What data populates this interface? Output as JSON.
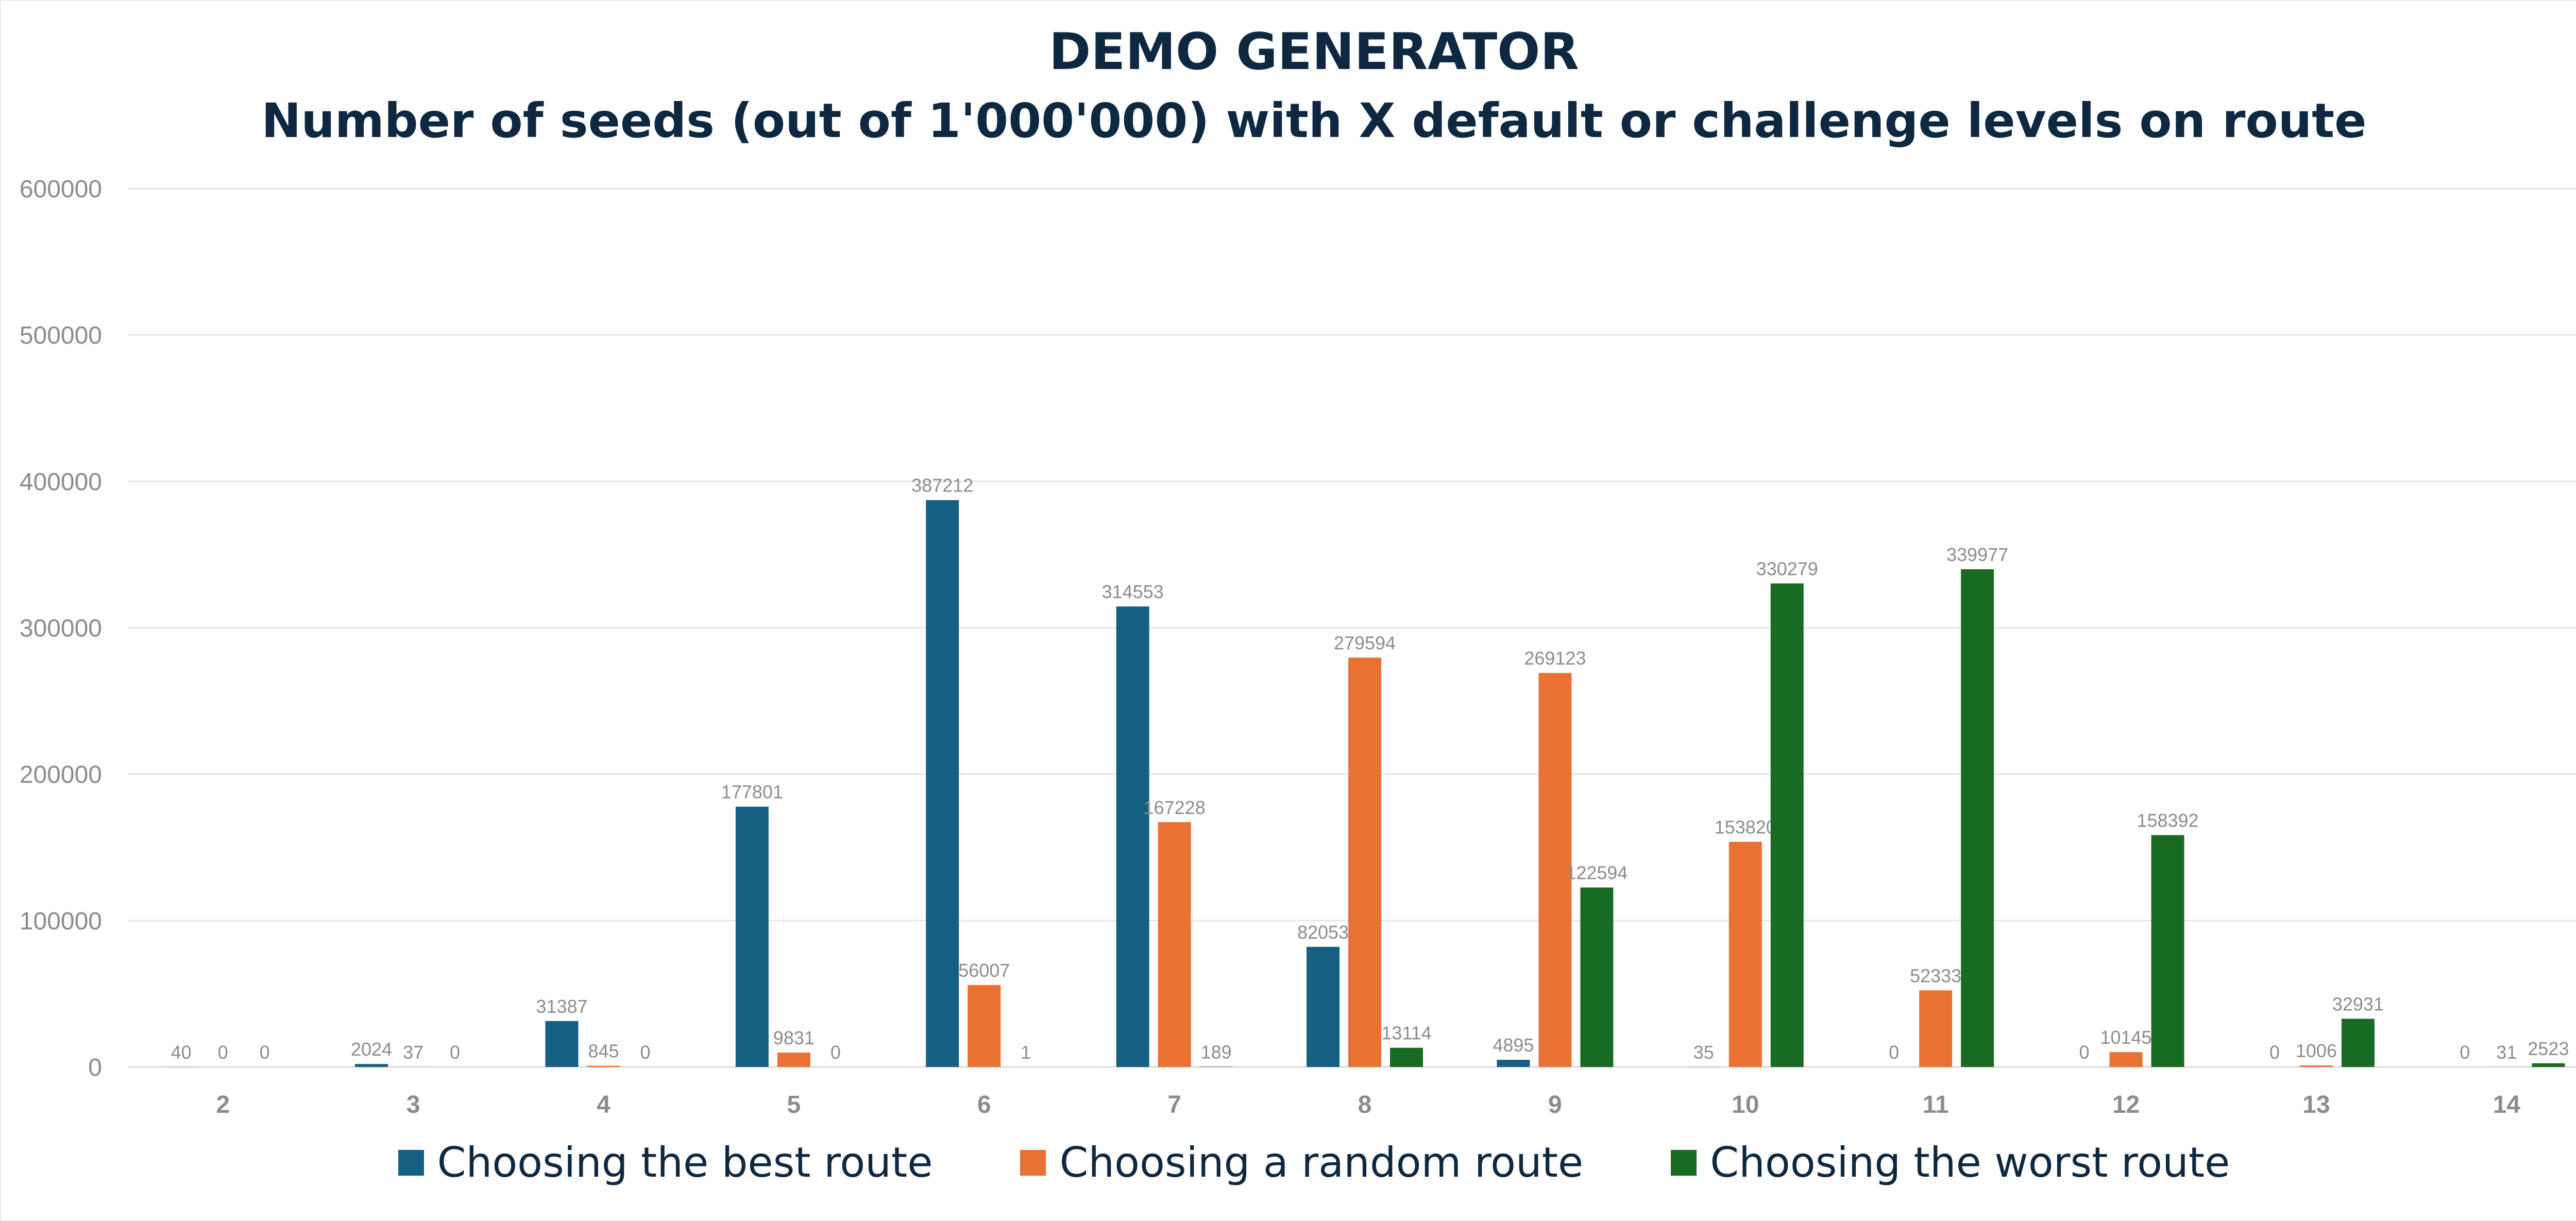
{
  "chart_data": {
    "type": "bar",
    "title": "DEMO GENERATOR",
    "subtitle": "Number of seeds (out of 1'000'000) with X default or challenge levels on route",
    "categories": [
      "2",
      "3",
      "4",
      "5",
      "6",
      "7",
      "8",
      "9",
      "10",
      "11",
      "12",
      "13",
      "14"
    ],
    "series": [
      {
        "name": "Choosing the best route",
        "color": "#156082",
        "values": [
          40,
          2024,
          31387,
          177801,
          387212,
          314553,
          82053,
          4895,
          35,
          0,
          0,
          0,
          0
        ]
      },
      {
        "name": "Choosing a random route",
        "color": "#e97132",
        "values": [
          0,
          37,
          845,
          9831,
          56007,
          167228,
          279594,
          269123,
          153820,
          52333,
          10145,
          1006,
          31
        ]
      },
      {
        "name": "Choosing the worst route",
        "color": "#196b24",
        "values": [
          0,
          0,
          0,
          0,
          1,
          189,
          13114,
          122594,
          330279,
          339977,
          158392,
          32931,
          2523
        ]
      }
    ],
    "ylim": [
      0,
      600000
    ],
    "yticks": [
      0,
      100000,
      200000,
      300000,
      400000,
      500000,
      600000
    ],
    "xlabel": "",
    "ylabel": "",
    "grid": true,
    "legend_position": "bottom"
  }
}
